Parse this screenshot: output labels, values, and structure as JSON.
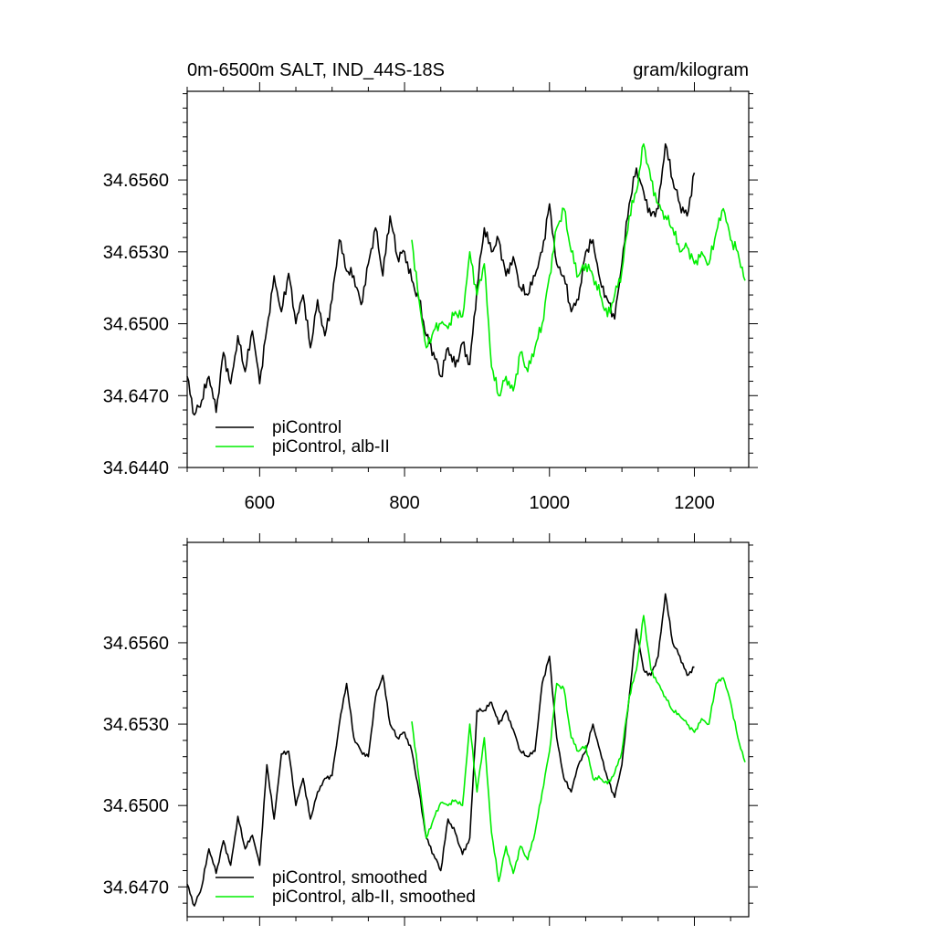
{
  "chart_data": [
    {
      "type": "line",
      "title": "0m-6500m SALT, IND_44S-18S",
      "units": "gram/kilogram",
      "xlim": [
        500,
        1275
      ],
      "ylim": [
        34.644,
        34.6597
      ],
      "xticks": [
        600,
        800,
        1000,
        1200
      ],
      "xtick_labels": [
        "600",
        "800",
        "1000",
        "1200"
      ],
      "yticks": [
        34.644,
        34.647,
        34.65,
        34.653,
        34.656
      ],
      "ytick_labels": [
        "34.6440",
        "34.6470",
        "34.6500",
        "34.6530",
        "34.6560"
      ],
      "legend_position": "bottom-left",
      "series": [
        {
          "name": "piControl",
          "color": "#000000",
          "x": [
            500,
            510,
            520,
            530,
            540,
            550,
            560,
            570,
            580,
            590,
            600,
            610,
            620,
            630,
            640,
            650,
            660,
            670,
            680,
            690,
            700,
            710,
            720,
            730,
            740,
            750,
            760,
            770,
            780,
            790,
            800,
            810,
            820,
            830,
            840,
            850,
            860,
            870,
            880,
            890,
            900,
            910,
            920,
            930,
            940,
            950,
            960,
            970,
            980,
            990,
            1000,
            1010,
            1020,
            1030,
            1040,
            1050,
            1060,
            1070,
            1080,
            1090,
            1100,
            1110,
            1120,
            1130,
            1140,
            1150,
            1160,
            1170,
            1180,
            1190,
            1200
          ],
          "y": [
            34.6478,
            34.6462,
            34.6468,
            34.6478,
            34.6463,
            34.6488,
            34.6475,
            34.6495,
            34.648,
            34.6497,
            34.6475,
            34.6498,
            34.652,
            34.6505,
            34.6521,
            34.65,
            34.6512,
            34.649,
            34.651,
            34.6495,
            34.651,
            34.6535,
            34.6522,
            34.652,
            34.6508,
            34.6525,
            34.654,
            34.652,
            34.6545,
            34.6528,
            34.653,
            34.6518,
            34.651,
            34.6495,
            34.6488,
            34.6478,
            34.649,
            34.6482,
            34.6492,
            34.6483,
            34.6515,
            34.654,
            34.653,
            34.6535,
            34.652,
            34.6528,
            34.6515,
            34.6512,
            34.652,
            34.653,
            34.655,
            34.6525,
            34.652,
            34.6505,
            34.651,
            34.653,
            34.6535,
            34.6518,
            34.651,
            34.6502,
            34.6525,
            34.655,
            34.6565,
            34.6555,
            34.6545,
            34.6548,
            34.6575,
            34.656,
            34.655,
            34.6545,
            34.6563
          ]
        },
        {
          "name": "piControl, alb-II",
          "color": "#00ee00",
          "x": [
            810,
            820,
            830,
            840,
            850,
            860,
            870,
            880,
            890,
            900,
            910,
            920,
            930,
            940,
            950,
            960,
            970,
            980,
            990,
            1000,
            1010,
            1020,
            1030,
            1040,
            1050,
            1060,
            1070,
            1080,
            1090,
            1100,
            1110,
            1120,
            1130,
            1140,
            1150,
            1160,
            1170,
            1180,
            1190,
            1200,
            1210,
            1220,
            1230,
            1240,
            1250,
            1260,
            1270
          ],
          "y": [
            34.6535,
            34.651,
            34.649,
            34.6497,
            34.65,
            34.6498,
            34.6505,
            34.6503,
            34.653,
            34.6512,
            34.6525,
            34.6482,
            34.647,
            34.6478,
            34.6472,
            34.6488,
            34.648,
            34.649,
            34.65,
            34.652,
            34.654,
            34.6548,
            34.653,
            34.652,
            34.6525,
            34.652,
            34.6512,
            34.6503,
            34.6512,
            34.6522,
            34.6545,
            34.6555,
            34.6575,
            34.656,
            34.655,
            34.6545,
            34.654,
            34.653,
            34.6532,
            34.6525,
            34.653,
            34.6525,
            34.6538,
            34.6548,
            34.6535,
            34.653,
            34.6518
          ]
        }
      ]
    },
    {
      "type": "line",
      "xlim": [
        500,
        1275
      ],
      "ylim": [
        34.6459,
        34.6597
      ],
      "xticks": [
        600,
        800,
        1000,
        1200
      ],
      "yticks": [
        34.647,
        34.65,
        34.653,
        34.656
      ],
      "ytick_labels": [
        "34.6470",
        "34.6500",
        "34.6530",
        "34.6560"
      ],
      "legend_position": "bottom-left",
      "series": [
        {
          "name": "piControl, smoothed",
          "color": "#000000",
          "x": [
            500,
            510,
            520,
            530,
            540,
            550,
            560,
            570,
            580,
            590,
            600,
            610,
            620,
            630,
            640,
            650,
            660,
            670,
            680,
            690,
            700,
            710,
            720,
            730,
            740,
            750,
            760,
            770,
            780,
            790,
            800,
            810,
            820,
            830,
            840,
            850,
            860,
            870,
            880,
            890,
            900,
            910,
            920,
            930,
            940,
            950,
            960,
            970,
            980,
            990,
            1000,
            1010,
            1020,
            1030,
            1040,
            1050,
            1060,
            1070,
            1080,
            1090,
            1100,
            1110,
            1120,
            1130,
            1140,
            1150,
            1160,
            1170,
            1180,
            1190,
            1200
          ],
          "y": [
            34.6471,
            34.6463,
            34.647,
            34.6484,
            34.6475,
            34.6487,
            34.6478,
            34.6496,
            34.6484,
            34.6489,
            34.6478,
            34.6515,
            34.6495,
            34.6519,
            34.652,
            34.65,
            34.651,
            34.6495,
            34.6505,
            34.651,
            34.6511,
            34.653,
            34.6545,
            34.6525,
            34.652,
            34.6518,
            34.654,
            34.6548,
            34.653,
            34.6525,
            34.6527,
            34.652,
            34.6505,
            34.6488,
            34.6482,
            34.6476,
            34.6495,
            34.649,
            34.6482,
            34.6488,
            34.6535,
            34.6535,
            34.6538,
            34.653,
            34.6535,
            34.6528,
            34.652,
            34.6518,
            34.652,
            34.6545,
            34.6555,
            34.6525,
            34.651,
            34.6505,
            34.6515,
            34.652,
            34.653,
            34.652,
            34.651,
            34.6503,
            34.6515,
            34.654,
            34.6565,
            34.655,
            34.6548,
            34.6555,
            34.6578,
            34.656,
            34.6555,
            34.6548,
            34.6551
          ]
        },
        {
          "name": "piControl, alb-II, smoothed",
          "color": "#00ee00",
          "x": [
            810,
            820,
            830,
            840,
            850,
            860,
            870,
            880,
            890,
            900,
            910,
            920,
            930,
            940,
            950,
            960,
            970,
            980,
            990,
            1000,
            1010,
            1020,
            1030,
            1040,
            1050,
            1060,
            1070,
            1080,
            1090,
            1100,
            1110,
            1120,
            1130,
            1140,
            1150,
            1160,
            1170,
            1180,
            1190,
            1200,
            1210,
            1220,
            1230,
            1240,
            1250,
            1260,
            1270
          ],
          "y": [
            34.6531,
            34.651,
            34.6488,
            34.6495,
            34.6501,
            34.65,
            34.6502,
            34.65,
            34.653,
            34.6505,
            34.6525,
            34.649,
            34.6472,
            34.6485,
            34.6475,
            34.6485,
            34.648,
            34.649,
            34.6505,
            34.652,
            34.6545,
            34.6543,
            34.6525,
            34.652,
            34.6522,
            34.651,
            34.651,
            34.6508,
            34.6512,
            34.652,
            34.654,
            34.655,
            34.657,
            34.655,
            34.6545,
            34.654,
            34.6535,
            34.6533,
            34.653,
            34.6527,
            34.6532,
            34.653,
            34.6545,
            34.6547,
            34.6538,
            34.6525,
            34.6516
          ]
        }
      ]
    }
  ]
}
